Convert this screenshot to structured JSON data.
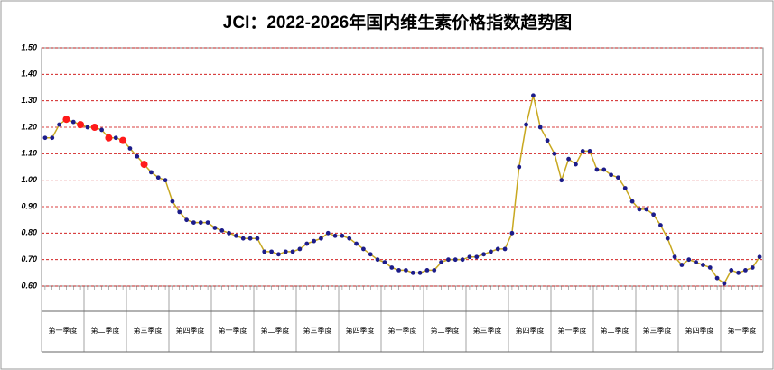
{
  "chart_data": {
    "type": "line",
    "title": "JCI：2022-2026年国内维生素价格指数趋势图",
    "values": [
      1.16,
      1.16,
      1.21,
      1.23,
      1.22,
      1.21,
      1.2,
      1.2,
      1.19,
      1.16,
      1.16,
      1.15,
      1.12,
      1.09,
      1.06,
      1.03,
      1.01,
      1.0,
      0.92,
      0.88,
      0.85,
      0.84,
      0.84,
      0.84,
      0.82,
      0.81,
      0.8,
      0.79,
      0.78,
      0.78,
      0.78,
      0.73,
      0.73,
      0.72,
      0.73,
      0.73,
      0.74,
      0.76,
      0.77,
      0.78,
      0.8,
      0.79,
      0.79,
      0.78,
      0.76,
      0.74,
      0.72,
      0.7,
      0.69,
      0.67,
      0.66,
      0.66,
      0.65,
      0.65,
      0.66,
      0.66,
      0.69,
      0.7,
      0.7,
      0.7,
      0.71,
      0.71,
      0.72,
      0.73,
      0.74,
      0.74,
      0.8,
      1.05,
      1.21,
      1.32,
      1.2,
      1.15,
      1.1,
      1.0,
      1.08,
      1.06,
      1.11,
      1.11,
      1.04,
      1.04,
      1.02,
      1.01,
      0.97,
      0.92,
      0.89,
      0.89,
      0.87,
      0.83,
      0.78,
      0.71,
      0.68,
      0.7,
      0.69,
      0.68,
      0.67,
      0.63,
      0.61,
      0.66,
      0.65,
      0.66,
      0.67,
      0.71
    ],
    "line_color": "#c8a820",
    "marker_color": "#1c1c8a",
    "highlight_color": "#ff1a1a",
    "highlight": [
      3,
      5,
      7,
      9,
      11,
      14
    ],
    "quarters": [
      "第一季度",
      "第二季度",
      "第三季度",
      "第四季度",
      "第一季度",
      "第二季度",
      "第三季度",
      "第四季度",
      "第一季度",
      "第二季度",
      "第三季度",
      "第四季度",
      "第一季度",
      "第二季度",
      "第三季度",
      "第四季度",
      "第一季度"
    ],
    "ylim": [
      0.6,
      1.5
    ],
    "yticks": [
      {
        "value": 0.6,
        "label": "0.60"
      },
      {
        "value": 0.7,
        "label": "0.70"
      },
      {
        "value": 0.8,
        "label": "0.80"
      },
      {
        "value": 0.9,
        "label": "0.90"
      },
      {
        "value": 1.0,
        "label": "1.00"
      },
      {
        "value": 1.1,
        "label": "1.10"
      },
      {
        "value": 1.2,
        "label": "1.20"
      },
      {
        "value": 1.3,
        "label": "1.30"
      },
      {
        "value": 1.4,
        "label": "1.40"
      },
      {
        "value": 1.5,
        "label": "1.50"
      }
    ],
    "grid": true,
    "grid_color": "#cc0000"
  }
}
